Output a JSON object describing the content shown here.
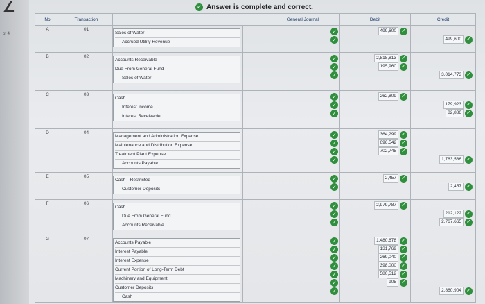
{
  "page_indicator": "of 4",
  "banner": {
    "text": "Answer is complete and correct."
  },
  "table": {
    "headers": {
      "no": "No",
      "transaction": "Transaction",
      "general_journal": "General Journal",
      "debit": "Debit",
      "credit": "Credit"
    },
    "rows": [
      {
        "no": "A",
        "transaction": "01",
        "accounts": [
          "Sales of Water",
          "Accrued Utility Revenue"
        ],
        "indent": [
          false,
          true
        ],
        "debits": [
          "499,600",
          ""
        ],
        "credits": [
          "",
          "499,600"
        ]
      },
      {
        "no": "B",
        "transaction": "02",
        "accounts": [
          "Accounts Receivable",
          "Due From General Fund",
          "Sales of Water"
        ],
        "indent": [
          false,
          false,
          true
        ],
        "debits": [
          "2,818,813",
          "195,960",
          ""
        ],
        "credits": [
          "",
          "",
          "3,014,773"
        ]
      },
      {
        "no": "C",
        "transaction": "03",
        "accounts": [
          "Cash",
          "Interest Income",
          "Interest Receivable"
        ],
        "indent": [
          false,
          true,
          true
        ],
        "debits": [
          "262,809",
          "",
          ""
        ],
        "credits": [
          "",
          "179,923",
          "82,886"
        ]
      },
      {
        "no": "D",
        "transaction": "04",
        "accounts": [
          "Management and Administration Expense",
          "Maintenance and Distribution Expense",
          "Treatment Plant Expense",
          "Accounts Payable"
        ],
        "indent": [
          false,
          false,
          false,
          true
        ],
        "debits": [
          "364,299",
          "696,542",
          "702,745",
          ""
        ],
        "credits": [
          "",
          "",
          "",
          "1,763,586"
        ]
      },
      {
        "no": "E",
        "transaction": "05",
        "accounts": [
          "Cash—Restricted",
          "Customer Deposits"
        ],
        "indent": [
          false,
          true
        ],
        "debits": [
          "2,457",
          ""
        ],
        "credits": [
          "",
          "2,457"
        ]
      },
      {
        "no": "F",
        "transaction": "06",
        "accounts": [
          "Cash",
          "Due From General Fund",
          "Accounts Receivable"
        ],
        "indent": [
          false,
          true,
          true
        ],
        "debits": [
          "2,979,787",
          "",
          ""
        ],
        "credits": [
          "",
          "212,122",
          "2,767,665"
        ]
      },
      {
        "no": "G",
        "transaction": "07",
        "accounts": [
          "Accounts Payable",
          "Interest Payable",
          "Interest Expense",
          "Current Portion of Long-Term Debt",
          "Machinery and Equipment",
          "Customer Deposits",
          "Cash"
        ],
        "indent": [
          false,
          false,
          false,
          false,
          false,
          false,
          true
        ],
        "debits": [
          "1,480,678",
          "131,769",
          "269,040",
          "398,000",
          "580,512",
          "905",
          ""
        ],
        "credits": [
          "",
          "",
          "",
          "",
          "",
          "",
          "2,860,904"
        ]
      }
    ]
  },
  "colors": {
    "check_green": "#2f8f3d",
    "header_text": "#1e3a6b"
  }
}
